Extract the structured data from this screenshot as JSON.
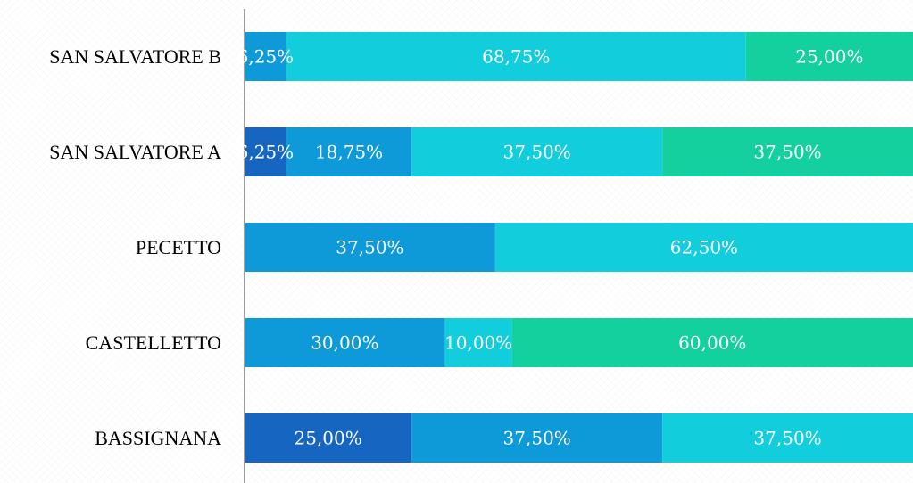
{
  "chart_data": {
    "type": "bar",
    "orientation": "horizontal",
    "stacked": "percent",
    "categories": [
      "SAN SALVATORE B",
      "SAN SALVATORE A",
      "PECETTO",
      "CASTELLETTO",
      "BASSIGNANA"
    ],
    "series": [
      {
        "values": [
          0,
          6.25,
          0,
          0,
          25.0
        ],
        "labels": [
          "",
          "6,25%",
          "",
          "",
          "25,00%"
        ],
        "color": "#1665C1"
      },
      {
        "values": [
          6.25,
          18.75,
          37.5,
          30.0,
          37.5
        ],
        "labels": [
          "6,25%",
          "18,75%",
          "37,50%",
          "30,00%",
          "37,50%"
        ],
        "color": "#0E9AD9"
      },
      {
        "values": [
          68.75,
          37.5,
          62.5,
          10.0,
          37.5
        ],
        "labels": [
          "68,75%",
          "37,50%",
          "62,50%",
          "10,00%",
          "37,50%"
        ],
        "color": "#12CEDC"
      },
      {
        "values": [
          25.0,
          37.5,
          0,
          60.0,
          0
        ],
        "labels": [
          "25,00%",
          "37,50%",
          "",
          "60,00%",
          ""
        ],
        "color": "#13D09E"
      }
    ],
    "xlim": [
      0,
      100
    ],
    "grid": false,
    "legend": "none",
    "axis_color": "#7F7F7F",
    "label_color": "#FFFFFF"
  }
}
